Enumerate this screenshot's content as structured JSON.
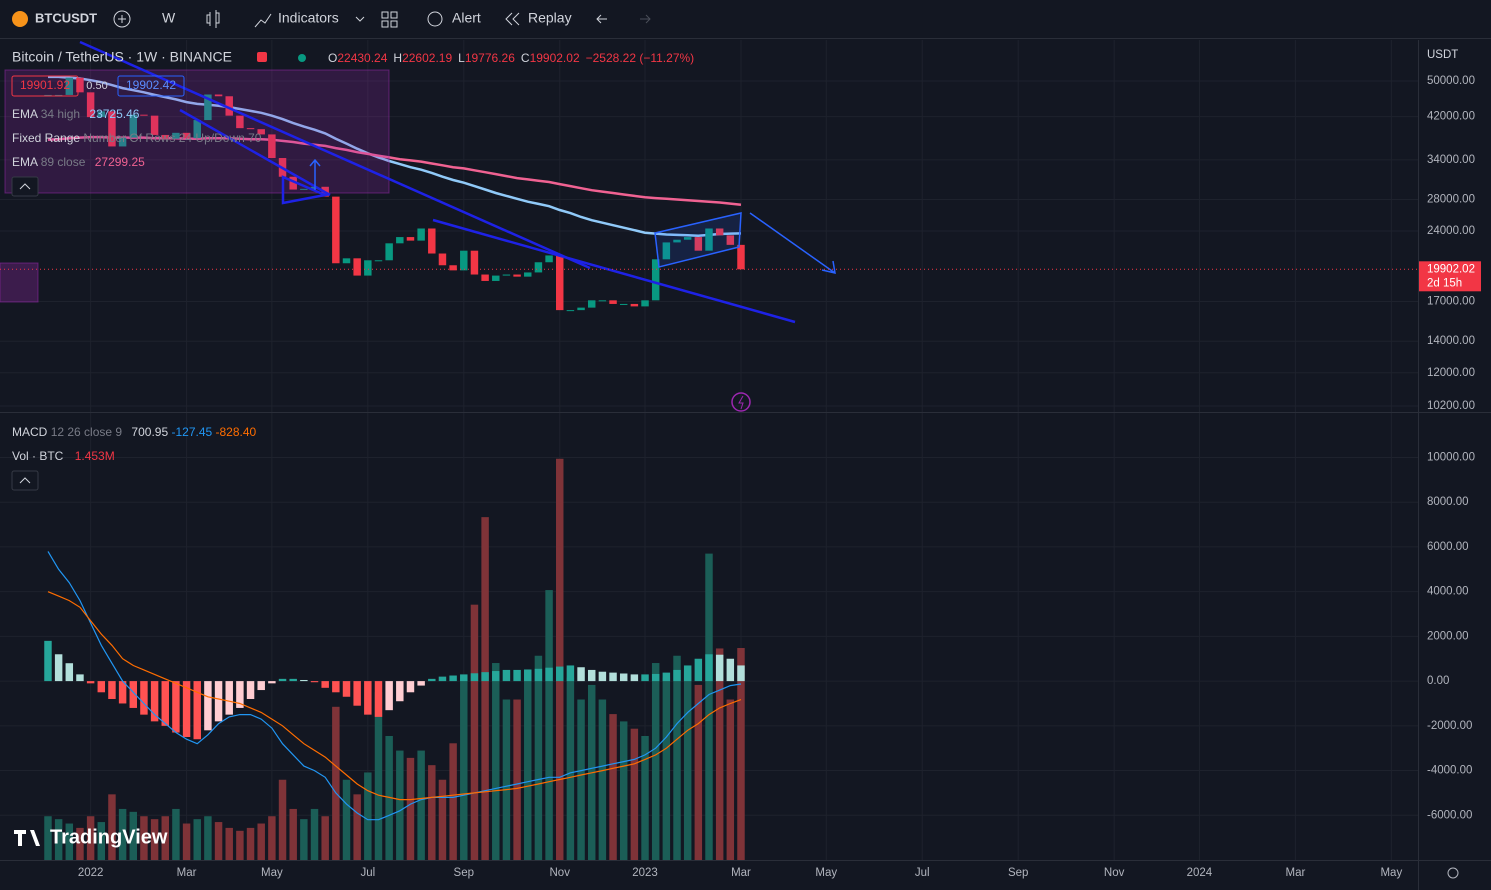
{
  "toolbar": {
    "symbol": "BTCUSDT",
    "interval": "W",
    "indicators": "Indicators",
    "alert": "Alert",
    "replay": "Replay"
  },
  "chart_data": {
    "type": "candlestick",
    "title": "Bitcoin / TetherUS · 1W · BINANCE",
    "ohlc": [
      {
        "key": "O",
        "text": "22430.24"
      },
      {
        "key": "H",
        "text": "22602.19"
      },
      {
        "key": "L",
        "text": "19776.26"
      },
      {
        "key": "C",
        "text": "19902.02"
      }
    ],
    "change": "−2528.22 (−11.27%)",
    "sell_price": "19901.92",
    "spread": "0.50",
    "buy_price": "19902.42",
    "indicator_legend": [
      {
        "name": "EMA",
        "params": "34 high",
        "value": "23725.46"
      },
      {
        "name": "Fixed Range",
        "params": "Number Of Rows 24 Up/Down 70"
      },
      {
        "name": "EMA",
        "params": "89 close",
        "value": "27299.25"
      }
    ],
    "currency": "USDT",
    "countdown": "2d 15h",
    "close": [
      46700,
      46700,
      50800,
      47300,
      41900,
      43100,
      36300,
      37900,
      42400,
      42200,
      38400,
      37700,
      38800,
      37800,
      41300,
      46800,
      46400,
      42200,
      39700,
      39500,
      38500,
      34300,
      31300,
      29400,
      29500,
      29800,
      28400,
      20500,
      21000,
      19300,
      20800,
      20800,
      22600,
      23300,
      22900,
      24300,
      21500,
      20300,
      19800,
      21800,
      19400,
      18800,
      19300,
      19400,
      19200,
      19600,
      20600,
      21300,
      16300,
      16300,
      16500,
      17100,
      17100,
      16800,
      16800,
      16600,
      17100,
      20900,
      22700,
      23000,
      23300,
      21800,
      24300,
      23500,
      22430.24,
      19902.02
    ],
    "ema_lines": [
      {
        "color": "#90caf9",
        "values": [
          51000,
          51000,
          50800,
          50600,
          50200,
          49700,
          49000,
          48300,
          47800,
          47300,
          46700,
          46200,
          45700,
          45100,
          44700,
          44500,
          44300,
          44000,
          43600,
          43200,
          42800,
          42200,
          41500,
          40700,
          40000,
          39400,
          38700,
          37700,
          36800,
          35900,
          35100,
          34400,
          33800,
          33300,
          32800,
          32400,
          31900,
          31300,
          30800,
          30400,
          29900,
          29400,
          28900,
          28500,
          28100,
          27700,
          27400,
          27100,
          26600,
          26200,
          25700,
          25300,
          25000,
          24700,
          24400,
          24100,
          23800,
          23700,
          23600,
          23550,
          23500,
          23450,
          23550,
          23650,
          23700,
          23725.46
        ]
      },
      {
        "color": "#f06292",
        "values": [
          37500,
          37600,
          37800,
          37900,
          38000,
          38000,
          37900,
          37900,
          37900,
          37900,
          37800,
          37800,
          37800,
          37700,
          37700,
          37800,
          37800,
          37800,
          37700,
          37600,
          37600,
          37500,
          37300,
          37100,
          36800,
          36600,
          36400,
          36000,
          35700,
          35300,
          35000,
          34700,
          34400,
          34100,
          33900,
          33700,
          33400,
          33100,
          32800,
          32600,
          32300,
          32000,
          31700,
          31400,
          31100,
          30900,
          30700,
          30500,
          30200,
          29900,
          29600,
          29300,
          29100,
          28900,
          28700,
          28500,
          28300,
          28200,
          28100,
          28000,
          27900,
          27800,
          27700,
          27600,
          27450,
          27299.25
        ]
      }
    ],
    "up_color": "#089981",
    "down_color": "#f23645",
    "log_scale": true,
    "grid": true,
    "ylim": [
      10000,
      61100
    ],
    "yticks": [
      {
        "value": 50000,
        "label": "50000.00"
      },
      {
        "value": 42000,
        "label": "42000.00"
      },
      {
        "value": 34000,
        "label": "34000.00"
      },
      {
        "value": 28000,
        "label": "28000.00"
      },
      {
        "value": 24000,
        "label": "24000.00"
      },
      {
        "value": 17000,
        "label": "17000.00"
      },
      {
        "value": 14000,
        "label": "14000.00"
      },
      {
        "value": 12000,
        "label": "12000.00"
      },
      {
        "value": 10200,
        "label": "10200.00"
      }
    ],
    "xlim": [
      -4.5,
      128.5
    ],
    "xticks": [
      {
        "value": 4,
        "label": "2022"
      },
      {
        "value": 13,
        "label": "Mar"
      },
      {
        "value": 21,
        "label": "May"
      },
      {
        "value": 30,
        "label": "Jul"
      },
      {
        "value": 39,
        "label": "Sep"
      },
      {
        "value": 48,
        "label": "Nov"
      },
      {
        "value": 56,
        "label": "2023"
      },
      {
        "value": 65,
        "label": "Mar"
      },
      {
        "value": 73,
        "label": "May"
      },
      {
        "value": 82,
        "label": "Jul"
      },
      {
        "value": 91,
        "label": "Sep"
      },
      {
        "value": 100,
        "label": "Nov"
      },
      {
        "value": 108,
        "label": "2024"
      },
      {
        "value": 117,
        "label": "Mar"
      },
      {
        "value": 126,
        "label": "May"
      }
    ],
    "macd": {
      "title": "MACD",
      "params": "12 26 close 9",
      "legend_values": [
        "700.95",
        "-127.45",
        "-828.40"
      ],
      "macd_color": "#2196f3",
      "signal_color": "#ff6d00",
      "histogram": [
        1800,
        1200,
        800,
        300,
        -100,
        -500,
        -800,
        -1000,
        -1200,
        -1500,
        -1800,
        -2000,
        -2300,
        -2500,
        -2600,
        -2200,
        -1800,
        -1500,
        -1200,
        -800,
        -400,
        -100,
        100,
        100,
        50,
        -50,
        -300,
        -500,
        -700,
        -1100,
        -1500,
        -1600,
        -1300,
        -900,
        -500,
        -200,
        100,
        200,
        250,
        300,
        350,
        400,
        450,
        500,
        500,
        520,
        550,
        600,
        650,
        700,
        620,
        500,
        420,
        380,
        340,
        300,
        300,
        320,
        380,
        500,
        700,
        1000,
        1200,
        1180,
        1000,
        700.95
      ],
      "macd": [
        5800,
        5000,
        4400,
        3600,
        2600,
        1600,
        800,
        0,
        -500,
        -1000,
        -1500,
        -1900,
        -2300,
        -2600,
        -2800,
        -2400,
        -1900,
        -1600,
        -1500,
        -1500,
        -1700,
        -2100,
        -2800,
        -3300,
        -3800,
        -4000,
        -4300,
        -5000,
        -5500,
        -5900,
        -6200,
        -6200,
        -6000,
        -5800,
        -5500,
        -5300,
        -5200,
        -5200,
        -5200,
        -5100,
        -5000,
        -4900,
        -4800,
        -4700,
        -4600,
        -4500,
        -4400,
        -4300,
        -4300,
        -4100,
        -4000,
        -3900,
        -3800,
        -3700,
        -3600,
        -3500,
        -3300,
        -3000,
        -2500,
        -1900,
        -1400,
        -1000,
        -600,
        -400,
        -200,
        -127.45
      ],
      "signal": [
        4000,
        3800,
        3600,
        3300,
        2700,
        2100,
        1600,
        1000,
        700,
        500,
        300,
        100,
        -100,
        -300,
        -500,
        -700,
        -800,
        -900,
        -1000,
        -1200,
        -1400,
        -1700,
        -2000,
        -2400,
        -2800,
        -3100,
        -3400,
        -3800,
        -4200,
        -4600,
        -4900,
        -5100,
        -5200,
        -5300,
        -5300,
        -5250,
        -5200,
        -5150,
        -5100,
        -5050,
        -5000,
        -4950,
        -4900,
        -4850,
        -4800,
        -4700,
        -4600,
        -4500,
        -4400,
        -4300,
        -4200,
        -4100,
        -4000,
        -3900,
        -3800,
        -3700,
        -3500,
        -3300,
        -3000,
        -2600,
        -2200,
        -1900,
        -1500,
        -1200,
        -1000,
        -828.4
      ],
      "ylim": [
        -8000,
        11900
      ],
      "yticks": [
        {
          "value": 10000,
          "label": "10000.00"
        },
        {
          "value": 8000,
          "label": "8000.00"
        },
        {
          "value": 6000,
          "label": "6000.00"
        },
        {
          "value": 4000,
          "label": "4000.00"
        },
        {
          "value": 2000,
          "label": "2000.00"
        },
        {
          "value": 0,
          "label": "0.00"
        },
        {
          "value": -2000,
          "label": "-2000.00"
        },
        {
          "value": -4000,
          "label": "-4000.00"
        },
        {
          "value": -6000,
          "label": "-6000.00"
        }
      ]
    },
    "volume": {
      "title": "Vol · BTC",
      "last_label": "1.453M",
      "up_color": "#1b5e57",
      "down_color": "#7f3338",
      "vlim": [
        0,
        3.05
      ],
      "values": [
        0.3,
        0.28,
        0.25,
        0.22,
        0.3,
        0.26,
        0.45,
        0.35,
        0.33,
        0.3,
        0.28,
        0.3,
        0.35,
        0.25,
        0.28,
        0.3,
        0.26,
        0.22,
        0.2,
        0.22,
        0.25,
        0.3,
        0.55,
        0.35,
        0.28,
        0.35,
        0.3,
        1.05,
        0.55,
        0.45,
        0.6,
        1.15,
        0.85,
        0.75,
        0.7,
        0.75,
        0.65,
        0.55,
        0.8,
        1.25,
        1.75,
        2.35,
        1.35,
        1.1,
        1.1,
        1.3,
        1.4,
        1.85,
        2.75,
        1.25,
        1.1,
        1.2,
        1.1,
        1.0,
        0.95,
        0.9,
        0.85,
        1.35,
        1.25,
        1.4,
        1.3,
        1.2,
        2.1,
        1.45,
        1.1,
        1.453
      ]
    }
  },
  "logo": "TradingView"
}
